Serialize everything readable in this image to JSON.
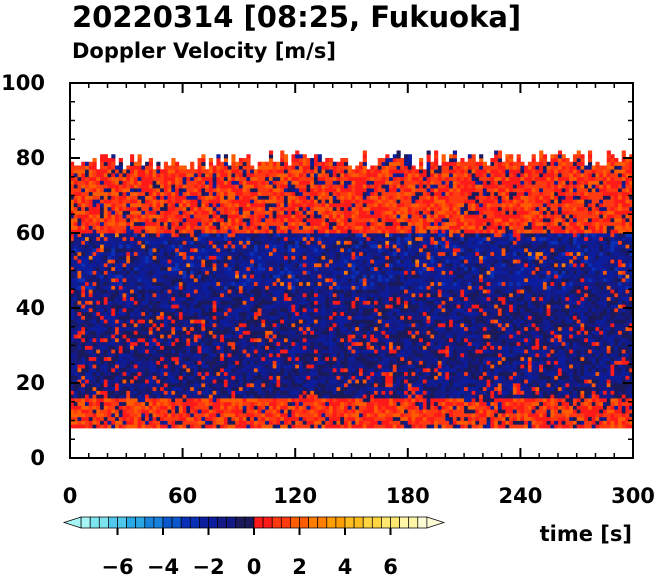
{
  "header": {
    "title": "20220314 [08:25, Fukuoka]",
    "subtitle": "Doppler Velocity [m/s]"
  },
  "chart_data": {
    "type": "heatmap",
    "title": "20220314 [08:25, Fukuoka]",
    "subtitle": "Doppler Velocity [m/s]",
    "xlabel": "time [s]",
    "ylabel": "",
    "xlim": [
      0,
      300
    ],
    "ylim": [
      0,
      100
    ],
    "x_ticks": [
      "0",
      "60",
      "120",
      "180",
      "240",
      "300"
    ],
    "x_tick_values": [
      0,
      60,
      120,
      180,
      240,
      300
    ],
    "y_ticks": [
      "0",
      "20",
      "40",
      "60",
      "80",
      "100"
    ],
    "y_tick_values": [
      0,
      20,
      40,
      60,
      80,
      100
    ],
    "data_extent_y": [
      8,
      80
    ],
    "bands": [
      {
        "y_from": 8,
        "y_to": 16,
        "value": 1.0
      },
      {
        "y_from": 16,
        "y_to": 28,
        "value": -1.0
      },
      {
        "y_from": 28,
        "y_to": 45,
        "value": -1.0
      },
      {
        "y_from": 45,
        "y_to": 60,
        "value": -1.5
      },
      {
        "y_from": 60,
        "y_to": 77,
        "value": 1.0
      }
    ],
    "colorbar": {
      "min": -8,
      "max": 8,
      "step": 0.4,
      "ticks": [
        -6,
        -4,
        -2,
        0,
        2,
        4,
        6
      ],
      "tick_labels": [
        "−6",
        "−4",
        "−2",
        "0",
        "2",
        "4",
        "6"
      ],
      "negative_colors": [
        "#a8f4f4",
        "#7ce4ee",
        "#4fc8ec",
        "#2aa8e6",
        "#1682dc",
        "#0a58cc",
        "#0a30b8",
        "#0c1d9e",
        "#141a84",
        "#1a1a5a"
      ],
      "positive_colors": [
        "#ff1a1a",
        "#ff3a10",
        "#ff5c00",
        "#ff7e00",
        "#ff9e00",
        "#ffbe20",
        "#ffd640",
        "#ffe870",
        "#fff6a8",
        "#fffdd8"
      ]
    },
    "grid": false,
    "legend": "colorbar-bottom"
  }
}
